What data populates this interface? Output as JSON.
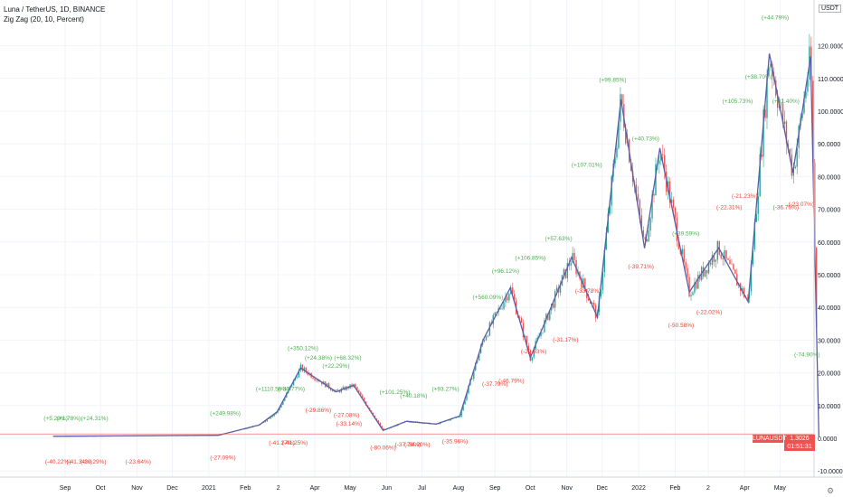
{
  "header": {
    "title": "Luna / TetherUS, 1D, BINANCE",
    "indicator": "Zig Zag (20, 10, Percent)"
  },
  "axis": {
    "currency": "USDT",
    "price_label": "1.3026",
    "countdown": "01:51:31",
    "symbol": "LUNAUSDT"
  },
  "colors": {
    "up": "#26a69a",
    "down": "#ef5350",
    "zigzag": "#5b5ea6",
    "label_up": "#4caf50",
    "label_down": "#f44336",
    "grid": "#f0f3fa"
  },
  "chart_data": {
    "type": "candlestick",
    "ylim": [
      -10,
      130
    ],
    "y_ticks": [
      "120.0000",
      "110.0000",
      "100.0000",
      "90.0000",
      "80.0000",
      "70.0000",
      "60.0000",
      "50.0000",
      "40.0000",
      "30.0000",
      "20.0000",
      "10.0000",
      "0.0000",
      "-10.0000"
    ],
    "y_tick_values": [
      120,
      110,
      100,
      90,
      80,
      70,
      60,
      50,
      40,
      30,
      20,
      10,
      0,
      -10
    ],
    "x_ticks": [
      "Sep",
      "Oct",
      "Nov",
      "Dec",
      "2021",
      "Feb",
      "2",
      "Apr",
      "May",
      "Jun",
      "Jul",
      "Aug",
      "Sep",
      "Oct",
      "Nov",
      "Dec",
      "2022",
      "Feb",
      "2",
      "Apr",
      "May"
    ],
    "x_tick_days": [
      0,
      30,
      61,
      91,
      122,
      153,
      181,
      212,
      242,
      273,
      303,
      334,
      365,
      395,
      426,
      456,
      487,
      518,
      546,
      577,
      607
    ],
    "x_range": [
      -12,
      640
    ],
    "last_price": 1.3026,
    "zigzag_points": [
      [
        -10,
        0.6
      ],
      [
        130,
        0.9
      ],
      [
        165,
        4.1
      ],
      [
        180,
        8.1
      ],
      [
        200,
        21.5
      ],
      [
        230,
        14.2
      ],
      [
        245,
        16.2
      ],
      [
        270,
        2.4
      ],
      [
        290,
        5.2
      ],
      [
        315,
        4.3
      ],
      [
        335,
        6.8
      ],
      [
        355,
        30.1
      ],
      [
        378,
        46.0
      ],
      [
        395,
        24.6
      ],
      [
        430,
        55.3
      ],
      [
        452,
        37.0
      ],
      [
        472,
        103.6
      ],
      [
        492,
        58.1
      ],
      [
        505,
        88.7
      ],
      [
        530,
        44.7
      ],
      [
        555,
        58.2
      ],
      [
        580,
        41.7
      ],
      [
        598,
        117.6
      ],
      [
        618,
        81.2
      ],
      [
        633,
        116.7
      ],
      [
        640,
        0.5
      ]
    ],
    "zigzag_labels": [
      {
        "text": "(+5.29%)",
        "day": -8,
        "price": 5.5,
        "dir": "up"
      },
      {
        "text": "(+1.78%)",
        "day": 3,
        "price": 5.5,
        "dir": "up"
      },
      {
        "text": "(+24.31%)",
        "day": 25,
        "price": 5.5,
        "dir": "up"
      },
      {
        "text": "(-40.22%)",
        "day": -6,
        "price": -7.8,
        "dir": "down"
      },
      {
        "text": "(-41.34%)",
        "day": 12,
        "price": -7.8,
        "dir": "down"
      },
      {
        "text": "(-20.29%)",
        "day": 24,
        "price": -7.8,
        "dir": "down"
      },
      {
        "text": "(-23.64%)",
        "day": 62,
        "price": -7.8,
        "dir": "down"
      },
      {
        "text": "(-27.09%)",
        "day": 134,
        "price": -6.5,
        "dir": "down"
      },
      {
        "text": "(+249.98%)",
        "day": 136,
        "price": 7,
        "dir": "up"
      },
      {
        "text": "(+1110.56%)",
        "day": 176,
        "price": 14.5,
        "dir": "up"
      },
      {
        "text": "(+30.77%)",
        "day": 192,
        "price": 14.5,
        "dir": "up"
      },
      {
        "text": "(+350.12%)",
        "day": 202,
        "price": 27,
        "dir": "up"
      },
      {
        "text": "(+24.38%)",
        "day": 215,
        "price": 24,
        "dir": "up"
      },
      {
        "text": "(+68.32%)",
        "day": 240,
        "price": 24,
        "dir": "up"
      },
      {
        "text": "(+22.29%)",
        "day": 230,
        "price": 21.5,
        "dir": "up"
      },
      {
        "text": "(-29.86%)",
        "day": 215,
        "price": 8,
        "dir": "down"
      },
      {
        "text": "(-27.08%)",
        "day": 239,
        "price": 6.5,
        "dir": "down"
      },
      {
        "text": "(-33.14%)",
        "day": 241,
        "price": 3.8,
        "dir": "down"
      },
      {
        "text": "(-41.27%)",
        "day": 184,
        "price": -2,
        "dir": "down"
      },
      {
        "text": "(-41.25%)",
        "day": 195,
        "price": -2,
        "dir": "down"
      },
      {
        "text": "(+101.25%)",
        "day": 280,
        "price": 13.5,
        "dir": "up"
      },
      {
        "text": "(+40.18%)",
        "day": 296,
        "price": 12.5,
        "dir": "up"
      },
      {
        "text": "(+93.27%)",
        "day": 323,
        "price": 14.5,
        "dir": "up"
      },
      {
        "text": "(-80.06%)",
        "day": 270,
        "price": -3.5,
        "dir": "down"
      },
      {
        "text": "(-37.78%)",
        "day": 291,
        "price": -2.5,
        "dir": "down"
      },
      {
        "text": "(-34.20%)",
        "day": 299,
        "price": -2.5,
        "dir": "down"
      },
      {
        "text": "(-35.96%)",
        "day": 331,
        "price": -1.5,
        "dir": "down"
      },
      {
        "text": "(+560.09%)",
        "day": 359,
        "price": 42.5,
        "dir": "up"
      },
      {
        "text": "(+96.12%)",
        "day": 374,
        "price": 50.5,
        "dir": "up"
      },
      {
        "text": "(+106.85%)",
        "day": 395,
        "price": 54.5,
        "dir": "up"
      },
      {
        "text": "(+57.63%)",
        "day": 419,
        "price": 60.5,
        "dir": "up"
      },
      {
        "text": "(-37.79%)",
        "day": 365,
        "price": 16,
        "dir": "down"
      },
      {
        "text": "(-46.79%)",
        "day": 379,
        "price": 17,
        "dir": "down"
      },
      {
        "text": "(-29.63%)",
        "day": 398,
        "price": 26,
        "dir": "down"
      },
      {
        "text": "(-31.17%)",
        "day": 425,
        "price": 29.5,
        "dir": "down"
      },
      {
        "text": "(-33.78%)",
        "day": 444,
        "price": 44.5,
        "dir": "down"
      },
      {
        "text": "(+107.01%)",
        "day": 443,
        "price": 83,
        "dir": "up"
      },
      {
        "text": "(+99.85%)",
        "day": 465,
        "price": 109,
        "dir": "up"
      },
      {
        "text": "(+40.73%)",
        "day": 493,
        "price": 91,
        "dir": "up"
      },
      {
        "text": "(-39.71%)",
        "day": 489,
        "price": 52,
        "dir": "down"
      },
      {
        "text": "(+39.59%)",
        "day": 527,
        "price": 62,
        "dir": "up"
      },
      {
        "text": "(-50.58%)",
        "day": 523,
        "price": 34,
        "dir": "down"
      },
      {
        "text": "(-22.02%)",
        "day": 547,
        "price": 38,
        "dir": "down"
      },
      {
        "text": "(+105.73%)",
        "day": 571,
        "price": 102.5,
        "dir": "up"
      },
      {
        "text": "(+38.70%)",
        "day": 589,
        "price": 110,
        "dir": "up"
      },
      {
        "text": "(+44.79%)",
        "day": 603,
        "price": 128,
        "dir": "up"
      },
      {
        "text": "(+31.40%)",
        "day": 612,
        "price": 102.5,
        "dir": "up"
      },
      {
        "text": "(-21.23%)",
        "day": 577,
        "price": 73.5,
        "dir": "down"
      },
      {
        "text": "(-22.31%)",
        "day": 564,
        "price": 70,
        "dir": "down"
      },
      {
        "text": "(-36.70%)",
        "day": 612,
        "price": 70,
        "dir": "down"
      },
      {
        "text": "(-23.07%)",
        "day": 625,
        "price": 71,
        "dir": "down"
      },
      {
        "text": "(-74.90%)",
        "day": 630,
        "price": 25,
        "dir": "up"
      }
    ]
  }
}
